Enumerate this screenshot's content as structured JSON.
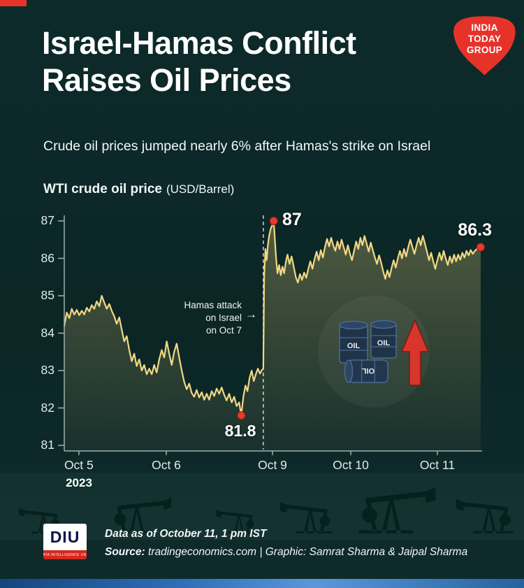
{
  "brand": {
    "logo_lines": [
      "INDIA",
      "TODAY",
      "GROUP"
    ],
    "logo_color": "#e6332a",
    "diu": {
      "name": "DIU",
      "tagline": "DATA INTELLIGENCE UNIT"
    }
  },
  "header": {
    "title_line1": "Israel-Hamas Conflict",
    "title_line2": "Raises Oil Prices",
    "subtitle": "Crude oil prices jumped nearly 6% after Hamas's strike on Israel"
  },
  "chart": {
    "title_bold": "WTI crude oil price",
    "title_unit": "(USD/Barrel)"
  },
  "chart_data": {
    "type": "line",
    "title": "WTI crude oil price (USD/Barrel)",
    "unit": "USD/Barrel",
    "ylim": [
      81,
      87
    ],
    "y_ticks": [
      87,
      86,
      85,
      84,
      83,
      82,
      81
    ],
    "x_ticks": [
      {
        "label": "Oct 5",
        "fx": 0.035
      },
      {
        "label": "Oct 6",
        "fx": 0.245
      },
      {
        "label": "Oct 9",
        "fx": 0.5
      },
      {
        "label": "Oct 10",
        "fx": 0.688
      },
      {
        "label": "Oct 11",
        "fx": 0.896
      }
    ],
    "year_label": "2023",
    "annotations": {
      "peak": {
        "label": "87",
        "value": 87.0,
        "fx": 0.503
      },
      "low": {
        "label": "81.8",
        "value": 81.8,
        "fx": 0.425
      },
      "last": {
        "label": "86.3",
        "value": 86.3,
        "fx": 1.0
      },
      "event": {
        "lines": [
          "Hamas attack",
          "on Israel",
          "on Oct 7"
        ],
        "arrow": "→",
        "fx": 0.478
      }
    },
    "series": [
      {
        "name": "WTI crude oil price",
        "color": "#f2d884",
        "points": [
          [
            0.0,
            84.2
          ],
          [
            0.006,
            84.55
          ],
          [
            0.012,
            84.4
          ],
          [
            0.018,
            84.65
          ],
          [
            0.024,
            84.5
          ],
          [
            0.03,
            84.62
          ],
          [
            0.036,
            84.48
          ],
          [
            0.042,
            84.6
          ],
          [
            0.048,
            84.5
          ],
          [
            0.054,
            84.68
          ],
          [
            0.06,
            84.58
          ],
          [
            0.066,
            84.75
          ],
          [
            0.072,
            84.65
          ],
          [
            0.078,
            84.85
          ],
          [
            0.084,
            84.72
          ],
          [
            0.09,
            85.0
          ],
          [
            0.096,
            84.82
          ],
          [
            0.102,
            84.65
          ],
          [
            0.108,
            84.78
          ],
          [
            0.114,
            84.6
          ],
          [
            0.12,
            84.45
          ],
          [
            0.126,
            84.25
          ],
          [
            0.132,
            84.42
          ],
          [
            0.138,
            84.1
          ],
          [
            0.144,
            83.78
          ],
          [
            0.15,
            83.92
          ],
          [
            0.156,
            83.55
          ],
          [
            0.162,
            83.25
          ],
          [
            0.168,
            83.45
          ],
          [
            0.174,
            83.12
          ],
          [
            0.18,
            83.3
          ],
          [
            0.186,
            83.0
          ],
          [
            0.192,
            83.15
          ],
          [
            0.198,
            82.9
          ],
          [
            0.204,
            83.05
          ],
          [
            0.21,
            82.9
          ],
          [
            0.216,
            83.15
          ],
          [
            0.222,
            82.95
          ],
          [
            0.228,
            83.3
          ],
          [
            0.234,
            83.55
          ],
          [
            0.24,
            83.35
          ],
          [
            0.246,
            83.78
          ],
          [
            0.252,
            83.45
          ],
          [
            0.258,
            83.15
          ],
          [
            0.264,
            83.5
          ],
          [
            0.27,
            83.72
          ],
          [
            0.276,
            83.35
          ],
          [
            0.282,
            83.0
          ],
          [
            0.288,
            82.7
          ],
          [
            0.294,
            82.5
          ],
          [
            0.3,
            82.65
          ],
          [
            0.306,
            82.4
          ],
          [
            0.312,
            82.3
          ],
          [
            0.318,
            82.48
          ],
          [
            0.324,
            82.28
          ],
          [
            0.33,
            82.42
          ],
          [
            0.336,
            82.22
          ],
          [
            0.342,
            82.38
          ],
          [
            0.348,
            82.22
          ],
          [
            0.354,
            82.45
          ],
          [
            0.36,
            82.32
          ],
          [
            0.366,
            82.52
          ],
          [
            0.372,
            82.38
          ],
          [
            0.378,
            82.55
          ],
          [
            0.384,
            82.35
          ],
          [
            0.39,
            82.2
          ],
          [
            0.396,
            82.38
          ],
          [
            0.402,
            82.15
          ],
          [
            0.408,
            82.3
          ],
          [
            0.414,
            82.05
          ],
          [
            0.42,
            82.15
          ],
          [
            0.425,
            81.8
          ],
          [
            0.43,
            82.3
          ],
          [
            0.435,
            82.6
          ],
          [
            0.44,
            82.45
          ],
          [
            0.445,
            82.8
          ],
          [
            0.45,
            83.0
          ],
          [
            0.455,
            82.72
          ],
          [
            0.46,
            82.9
          ],
          [
            0.465,
            83.05
          ],
          [
            0.47,
            82.92
          ],
          [
            0.475,
            83.02
          ],
          [
            0.478,
            83.05
          ],
          [
            0.48,
            85.5
          ],
          [
            0.483,
            86.25
          ],
          [
            0.486,
            85.95
          ],
          [
            0.489,
            86.35
          ],
          [
            0.492,
            86.6
          ],
          [
            0.496,
            86.8
          ],
          [
            0.5,
            86.9
          ],
          [
            0.503,
            87.0
          ],
          [
            0.506,
            86.45
          ],
          [
            0.509,
            85.95
          ],
          [
            0.512,
            85.6
          ],
          [
            0.516,
            85.82
          ],
          [
            0.52,
            85.55
          ],
          [
            0.524,
            85.78
          ],
          [
            0.528,
            85.6
          ],
          [
            0.532,
            85.9
          ],
          [
            0.536,
            86.1
          ],
          [
            0.541,
            85.85
          ],
          [
            0.546,
            86.05
          ],
          [
            0.551,
            85.78
          ],
          [
            0.556,
            85.5
          ],
          [
            0.561,
            85.35
          ],
          [
            0.566,
            85.58
          ],
          [
            0.571,
            85.42
          ],
          [
            0.576,
            85.62
          ],
          [
            0.581,
            85.48
          ],
          [
            0.586,
            85.72
          ],
          [
            0.591,
            85.92
          ],
          [
            0.596,
            85.72
          ],
          [
            0.601,
            85.98
          ],
          [
            0.606,
            86.18
          ],
          [
            0.611,
            85.95
          ],
          [
            0.616,
            86.22
          ],
          [
            0.621,
            86.02
          ],
          [
            0.626,
            86.3
          ],
          [
            0.631,
            86.52
          ],
          [
            0.636,
            86.32
          ],
          [
            0.641,
            86.55
          ],
          [
            0.646,
            86.35
          ],
          [
            0.651,
            86.2
          ],
          [
            0.656,
            86.45
          ],
          [
            0.661,
            86.25
          ],
          [
            0.666,
            86.5
          ],
          [
            0.671,
            86.3
          ],
          [
            0.676,
            86.1
          ],
          [
            0.681,
            86.35
          ],
          [
            0.686,
            86.12
          ],
          [
            0.691,
            85.95
          ],
          [
            0.696,
            86.2
          ],
          [
            0.701,
            86.45
          ],
          [
            0.706,
            86.25
          ],
          [
            0.711,
            86.55
          ],
          [
            0.716,
            86.35
          ],
          [
            0.721,
            86.6
          ],
          [
            0.726,
            86.4
          ],
          [
            0.731,
            86.18
          ],
          [
            0.736,
            86.42
          ],
          [
            0.741,
            86.22
          ],
          [
            0.746,
            86.02
          ],
          [
            0.751,
            85.85
          ],
          [
            0.756,
            86.08
          ],
          [
            0.761,
            85.88
          ],
          [
            0.766,
            85.65
          ],
          [
            0.771,
            85.45
          ],
          [
            0.776,
            85.68
          ],
          [
            0.781,
            85.5
          ],
          [
            0.786,
            85.75
          ],
          [
            0.791,
            85.95
          ],
          [
            0.796,
            85.75
          ],
          [
            0.801,
            86.0
          ],
          [
            0.806,
            86.2
          ],
          [
            0.811,
            86.0
          ],
          [
            0.816,
            86.25
          ],
          [
            0.821,
            86.05
          ],
          [
            0.826,
            86.3
          ],
          [
            0.831,
            86.5
          ],
          [
            0.836,
            86.3
          ],
          [
            0.841,
            86.12
          ],
          [
            0.846,
            86.35
          ],
          [
            0.851,
            86.55
          ],
          [
            0.856,
            86.35
          ],
          [
            0.861,
            86.6
          ],
          [
            0.866,
            86.4
          ],
          [
            0.871,
            86.18
          ],
          [
            0.876,
            85.95
          ],
          [
            0.881,
            86.15
          ],
          [
            0.886,
            85.92
          ],
          [
            0.891,
            85.72
          ],
          [
            0.896,
            85.95
          ],
          [
            0.901,
            86.15
          ],
          [
            0.906,
            85.95
          ],
          [
            0.911,
            86.2
          ],
          [
            0.916,
            86.0
          ],
          [
            0.921,
            85.82
          ],
          [
            0.926,
            86.05
          ],
          [
            0.931,
            85.88
          ],
          [
            0.936,
            86.1
          ],
          [
            0.941,
            85.92
          ],
          [
            0.946,
            86.1
          ],
          [
            0.951,
            85.96
          ],
          [
            0.956,
            86.15
          ],
          [
            0.961,
            86.02
          ],
          [
            0.966,
            86.2
          ],
          [
            0.971,
            86.08
          ],
          [
            0.976,
            86.22
          ],
          [
            0.981,
            86.12
          ],
          [
            0.986,
            86.2
          ],
          [
            0.991,
            86.25
          ],
          [
            1.0,
            86.3
          ]
        ]
      }
    ],
    "illustration": {
      "barrel_label": "OIL"
    }
  },
  "footer": {
    "data_as_of": "Data as of October 11, 1 pm IST",
    "source_prefix": "Source:",
    "source_text": " tradingeconomics.com | Graphic: Samrat Sharma & Jaipal Sharma"
  }
}
